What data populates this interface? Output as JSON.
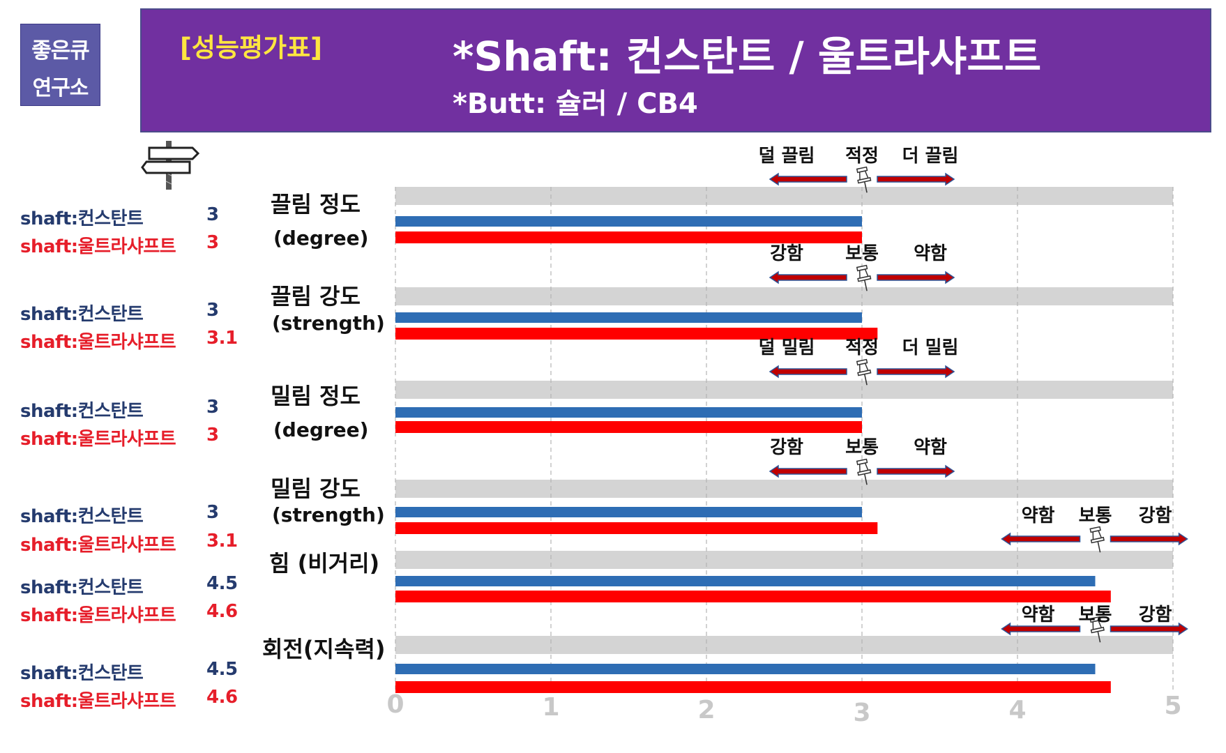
{
  "logo": {
    "line1": "좋은큐",
    "line2": "연구소"
  },
  "header": {
    "tag": "[성능평가표]",
    "title": "*Shaft: 컨스탄트 / 울트라샤프트",
    "subtitle": "*Butt: 슐러 / CB4"
  },
  "colors": {
    "series_a": "#2e6db4",
    "series_b": "#ff0000",
    "track": "#d4d4d4",
    "banner": "#7130a0",
    "tag": "#ffe640",
    "arrow_fill": "#c00000",
    "arrow_edge": "#2f5597"
  },
  "icons": {
    "signpost": "signpost-icon",
    "pushpin": "pushpin-icon"
  },
  "legend": [
    {
      "a_label": "shaft:컨스탄트",
      "a_value": "3",
      "b_label": "shaft:울트라샤프트",
      "b_value": "3"
    },
    {
      "a_label": "shaft:컨스탄트",
      "a_value": "3",
      "b_label": "shaft:울트라샤프트",
      "b_value": "3.1"
    },
    {
      "a_label": "shaft:컨스탄트",
      "a_value": "3",
      "b_label": "shaft:울트라샤프트",
      "b_value": "3"
    },
    {
      "a_label": "shaft:컨스탄트",
      "a_value": "3",
      "b_label": "shaft:울트라샤프트",
      "b_value": "3.1"
    },
    {
      "a_label": "shaft:컨스탄트",
      "a_value": "4.5",
      "b_label": "shaft:울트라샤프트",
      "b_value": "4.6"
    },
    {
      "a_label": "shaft:컨스탄트",
      "a_value": "4.5",
      "b_label": "shaft:울트라샤프트",
      "b_value": "4.6"
    }
  ],
  "category_labels": [
    {
      "main": "끌림 정도",
      "sub": "(degree)"
    },
    {
      "main": "끌림 강도",
      "sub": "(strength)"
    },
    {
      "main": "밀림 정도",
      "sub": "(degree)"
    },
    {
      "main": "밀림 강도",
      "sub": "(strength)"
    },
    {
      "main": "힘 (비거리)",
      "sub": ""
    },
    {
      "main": "회전(지속력)",
      "sub": ""
    }
  ],
  "chart_data": {
    "type": "bar",
    "orientation": "horizontal",
    "categories": [
      "끌림 정도 (degree)",
      "끌림 강도 (strength)",
      "밀림 정도 (degree)",
      "밀림 강도 (strength)",
      "힘 (비거리)",
      "회전(지속력)"
    ],
    "series": [
      {
        "name": "shaft:컨스탄트",
        "values": [
          3,
          3,
          3,
          3,
          4.5,
          4.5
        ]
      },
      {
        "name": "shaft:울트라샤프트",
        "values": [
          3,
          3.1,
          3,
          3.1,
          4.6,
          4.6
        ]
      }
    ],
    "xlim": [
      0,
      5
    ],
    "x_ticks": [
      "0",
      "1",
      "2",
      "3",
      "4",
      "5"
    ],
    "grid": true,
    "scales": [
      {
        "left": "덜 끌림",
        "mid": "적정",
        "right": "더 끌림",
        "marker": 3
      },
      {
        "left": "강함",
        "mid": "보통",
        "right": "약함",
        "marker": 3
      },
      {
        "left": "덜 밀림",
        "mid": "적정",
        "right": "더 밀림",
        "marker": 3
      },
      {
        "left": "강함",
        "mid": "보통",
        "right": "약함",
        "marker": 3
      },
      {
        "left": "약함",
        "mid": "보통",
        "right": "강함",
        "marker": 4.5
      },
      {
        "left": "약함",
        "mid": "보통",
        "right": "강함",
        "marker": 4.5
      }
    ]
  }
}
